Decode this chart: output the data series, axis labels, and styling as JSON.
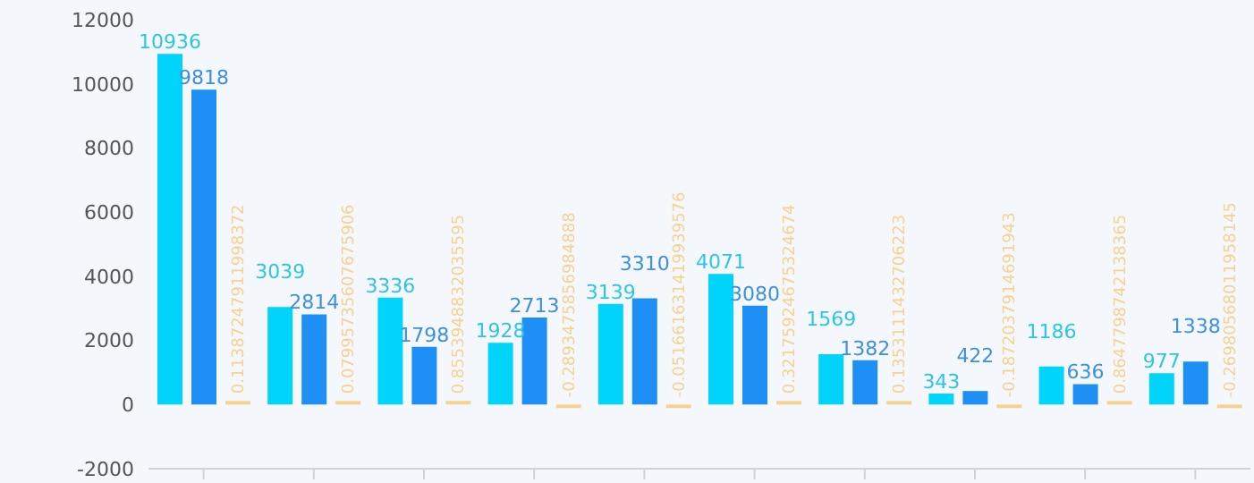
{
  "chart_data": {
    "type": "bar",
    "categories": [
      null,
      null,
      null,
      null,
      null,
      null,
      null,
      null,
      null,
      null
    ],
    "series": [
      {
        "color": "#00d4fb",
        "values": [
          10936,
          3039,
          3336,
          1928,
          3139,
          4071,
          1569,
          343,
          1186,
          977
        ]
      },
      {
        "color": "#1e90f5",
        "values": [
          9818,
          2814,
          1798,
          2713,
          3310,
          3080,
          1382,
          422,
          636,
          1338
        ]
      },
      {
        "color": "#f5d28f",
        "values": [
          0.11387247911998372,
          0.07995735607675906,
          0.8553948832035595,
          -0.2893475856984888,
          -0.051661631419939576,
          0.32175924675324674,
          0.1353111432706223,
          -0.1872037914691943,
          0.8647798742138365,
          -0.26980568011958145
        ]
      }
    ],
    "ylim": [
      -2000,
      12000
    ],
    "yticks": [
      -2000,
      0,
      2000,
      4000,
      6000,
      8000,
      10000,
      12000
    ],
    "grid": false,
    "data_labels": true
  }
}
